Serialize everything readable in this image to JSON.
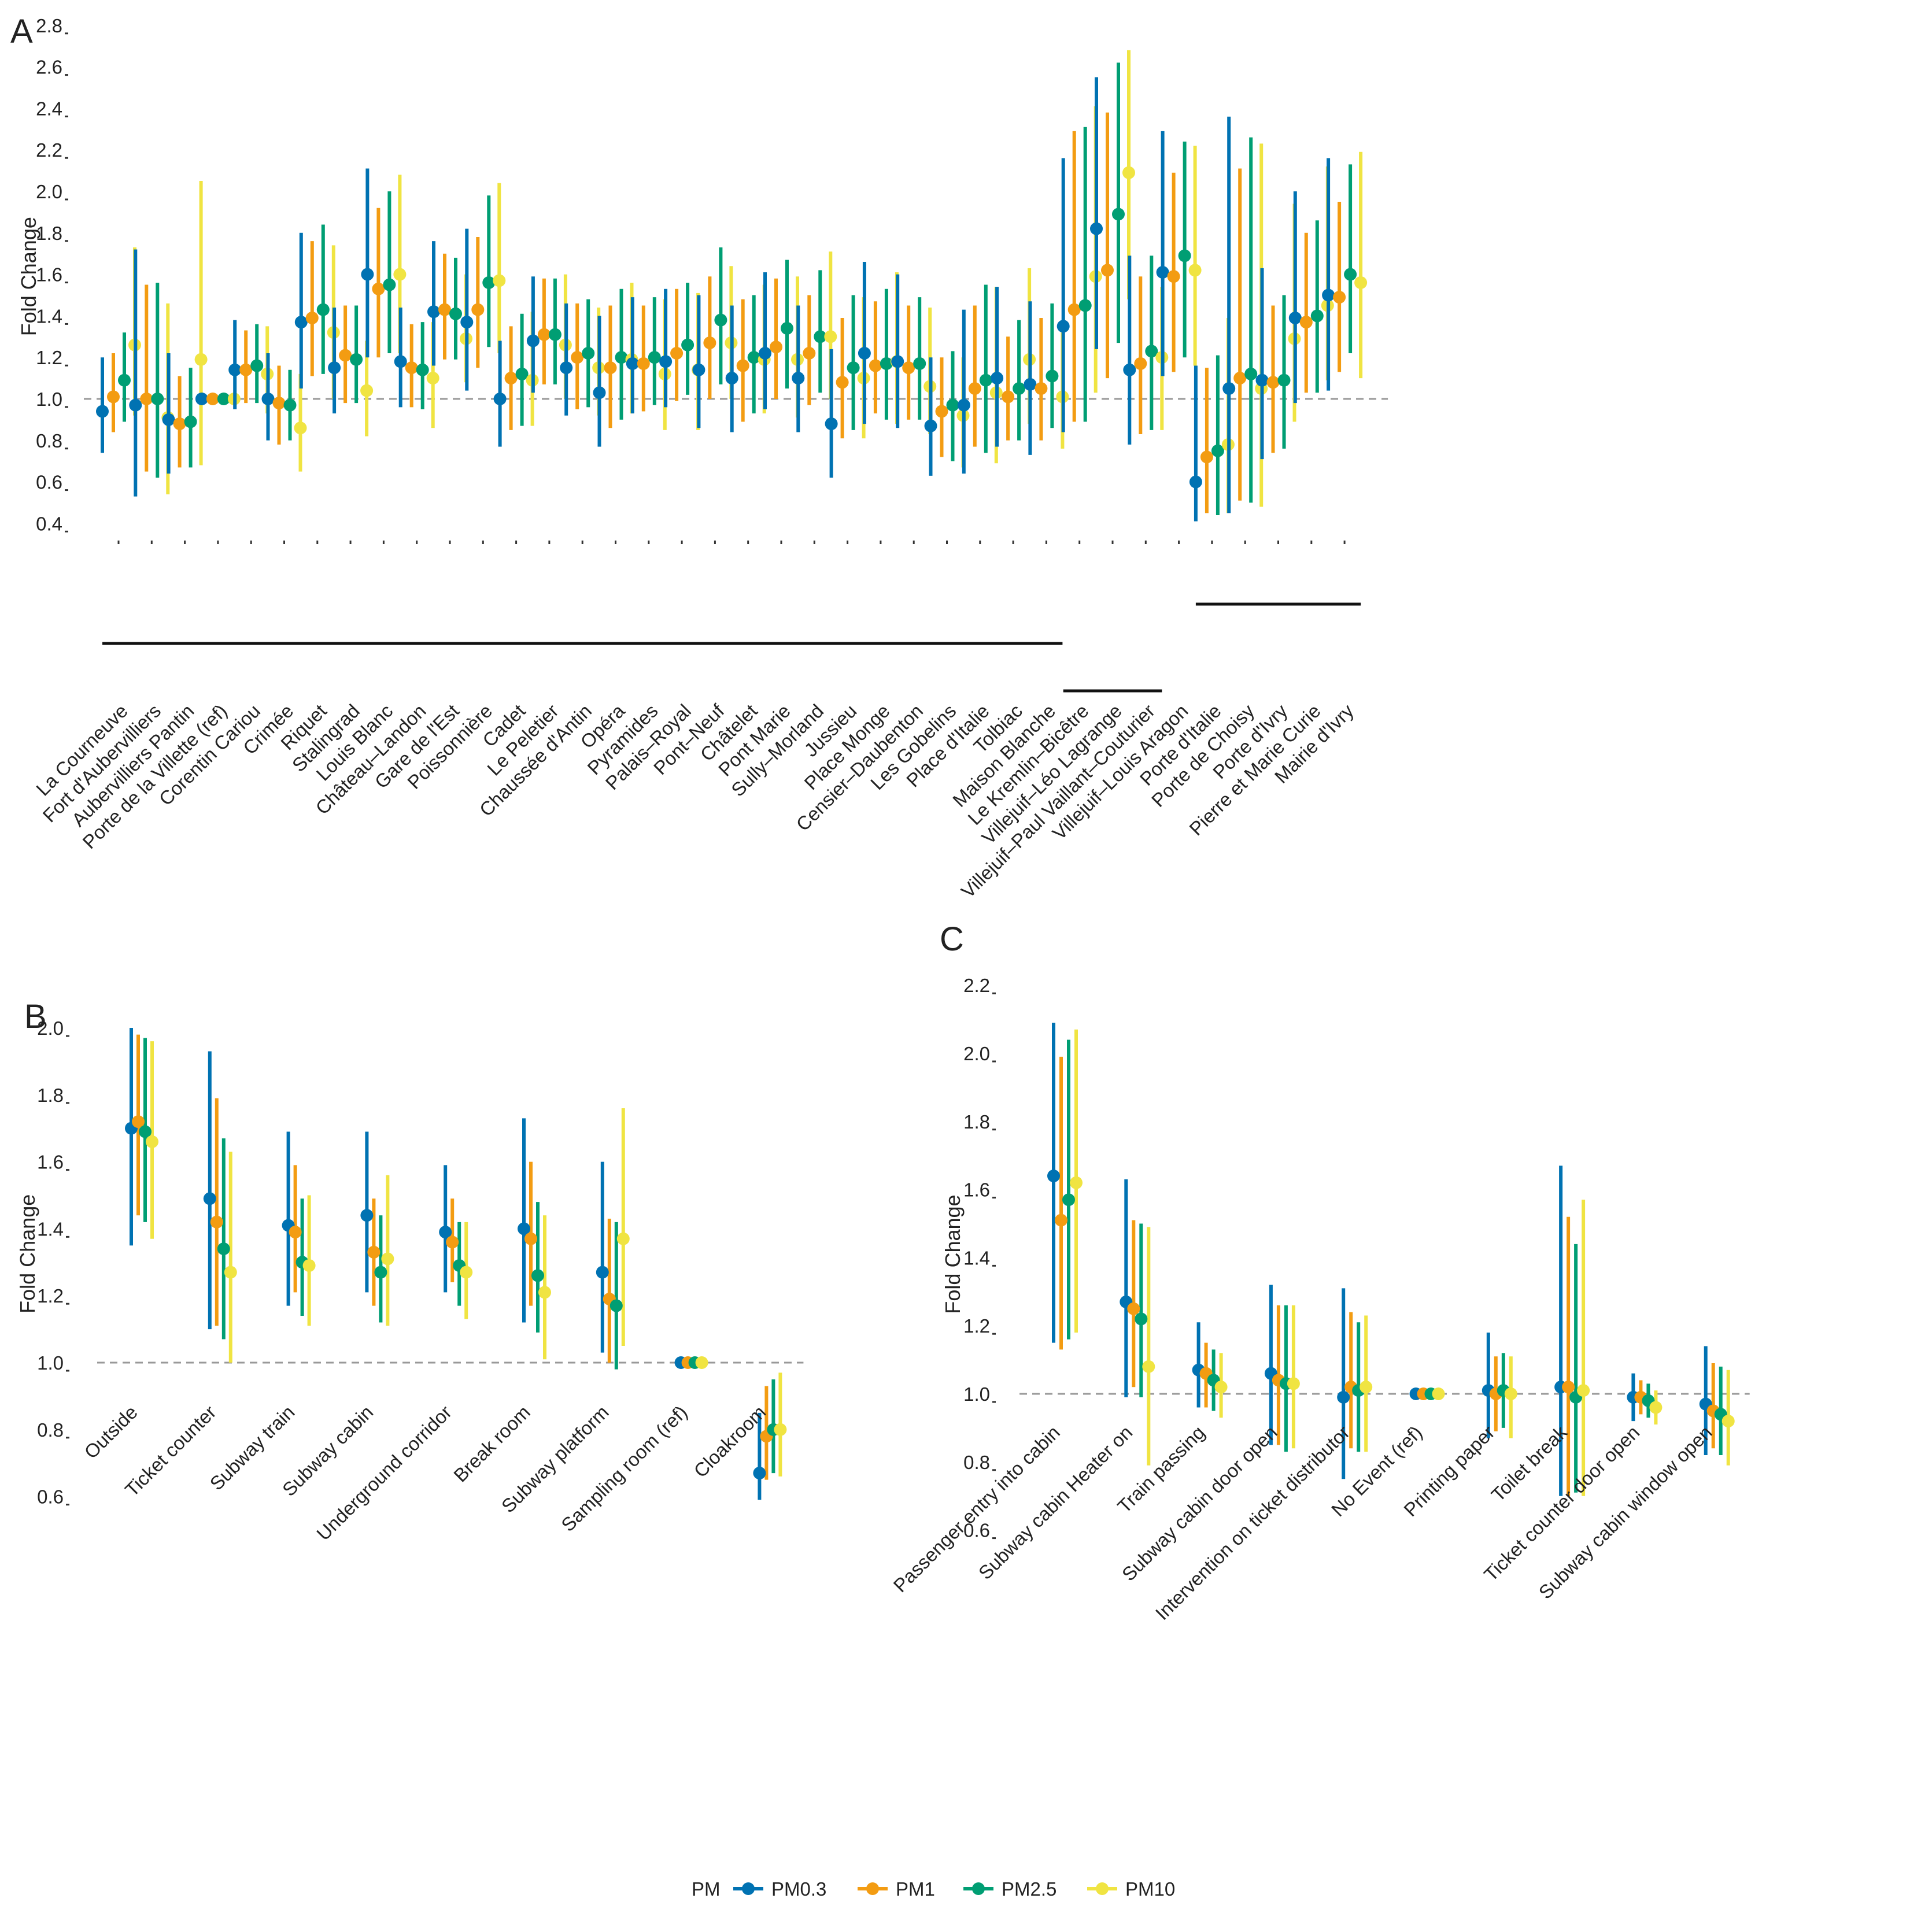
{
  "legend": {
    "title": "PM",
    "items": [
      "PM0.3",
      "PM1",
      "PM2.5",
      "PM10"
    ]
  },
  "colors": {
    "PM0.3": "#0072B2",
    "PM1": "#F39C12",
    "PM2.5": "#009E73",
    "PM10": "#F0E442"
  },
  "chart_data": [
    {
      "panel": "A",
      "type": "errorbar-dot",
      "ylabel": "Fold Change",
      "ylim": [
        0.33,
        2.85
      ],
      "yticks": [
        "0.4",
        "0.6",
        "0.8",
        "1.0",
        "1.2",
        "1.4",
        "1.6",
        "1.8",
        "2.0",
        "2.2",
        "2.4",
        "2.6",
        "2.8"
      ],
      "reference_line": 1.0,
      "series_order": [
        "PM0.3",
        "PM1",
        "PM2.5",
        "PM10"
      ],
      "groups": [
        {
          "from": 0,
          "to": 28
        },
        {
          "from": 29,
          "to": 31
        },
        {
          "from": 33,
          "to": 37
        }
      ],
      "categories": [
        "La Courneuve",
        "Fort d'Aubervilliers",
        "Aubervilliers Pantin",
        "Porte de la Villette (ref)",
        "Corentin Cariou",
        "Crimée",
        "Riquet",
        "Stalingrad",
        "Louis Blanc",
        "Château–Landon",
        "Gare de l'Est",
        "Poissonnière",
        "Cadet",
        "Le Peletier",
        "Chaussée d'Antin",
        "Opéra",
        "Pyramides",
        "Palais–Royal",
        "Pont–Neuf",
        "Châtelet",
        "Pont Marie",
        "Sully–Morland",
        "Jussieu",
        "Place Monge",
        "Censier–Daubenton",
        "Les Gobelins",
        "Place d'Italie",
        "Tolbiac",
        "Maison Blanche",
        "Le Kremlin–Bicêtre",
        "Villejuif–Léo Lagrange",
        "Villejuif–Paul Vaillant–Couturier",
        "Villejuif–Louis Aragon",
        "Porte d'Italie",
        "Porte de Choisy",
        "Porte d'Ivry",
        "Pierre et Marie Curie",
        "Mairie d'Ivry"
      ],
      "values": [
        [
          0.94,
          1.01,
          1.09,
          1.26
        ],
        [
          0.97,
          1.0,
          1.0,
          0.91
        ],
        [
          0.9,
          0.88,
          0.89,
          1.19
        ],
        [
          1.0,
          1.0,
          1.0,
          1.0
        ],
        [
          1.14,
          1.14,
          1.16,
          1.12
        ],
        [
          1.0,
          0.98,
          0.97,
          0.86
        ],
        [
          1.37,
          1.39,
          1.43,
          1.32
        ],
        [
          1.15,
          1.21,
          1.19,
          1.04
        ],
        [
          1.6,
          1.53,
          1.55,
          1.6
        ],
        [
          1.18,
          1.15,
          1.14,
          1.1
        ],
        [
          1.42,
          1.43,
          1.41,
          1.29
        ],
        [
          1.37,
          1.43,
          1.56,
          1.57
        ],
        [
          1.0,
          1.1,
          1.12,
          1.09
        ],
        [
          1.28,
          1.31,
          1.31,
          1.26
        ],
        [
          1.15,
          1.2,
          1.22,
          1.15
        ],
        [
          1.03,
          1.15,
          1.2,
          1.19
        ],
        [
          1.17,
          1.17,
          1.2,
          1.12
        ],
        [
          1.18,
          1.22,
          1.26,
          1.14
        ],
        [
          1.14,
          1.27,
          1.38,
          1.27
        ],
        [
          1.1,
          1.16,
          1.2,
          1.19
        ],
        [
          1.22,
          1.25,
          1.34,
          1.19
        ],
        [
          1.1,
          1.22,
          1.3,
          1.3
        ],
        [
          0.88,
          1.08,
          1.15,
          1.1
        ],
        [
          1.22,
          1.16,
          1.17,
          1.18
        ],
        [
          1.18,
          1.15,
          1.17,
          1.06
        ],
        [
          0.87,
          0.94,
          0.97,
          0.92
        ],
        [
          0.97,
          1.05,
          1.09,
          1.03
        ],
        [
          1.1,
          1.01,
          1.05,
          1.19
        ],
        [
          1.07,
          1.05,
          1.11,
          1.01
        ],
        [
          1.35,
          1.43,
          1.45,
          1.59
        ],
        [
          1.82,
          1.62,
          1.89,
          2.09
        ],
        [
          1.14,
          1.17,
          1.23,
          1.2
        ],
        [
          1.61,
          1.59,
          1.69,
          1.62
        ],
        [
          0.6,
          0.72,
          0.75,
          0.78
        ],
        [
          1.05,
          1.1,
          1.12,
          1.05
        ],
        [
          1.09,
          1.08,
          1.09,
          1.29
        ],
        [
          1.39,
          1.37,
          1.4,
          1.45
        ],
        [
          1.5,
          1.49,
          1.6,
          1.56
        ]
      ],
      "lower": [
        [
          0.74,
          0.84,
          0.89,
          0.92
        ],
        [
          0.53,
          0.65,
          0.62,
          0.54
        ],
        [
          0.64,
          0.67,
          0.67,
          0.68
        ],
        [
          1.0,
          1.0,
          1.0,
          1.0
        ],
        [
          0.95,
          0.98,
          0.98,
          0.93
        ],
        [
          0.8,
          0.78,
          0.8,
          0.65
        ],
        [
          1.05,
          1.11,
          1.12,
          1.0
        ],
        [
          0.93,
          0.98,
          0.98,
          0.82
        ],
        [
          1.2,
          1.2,
          1.22,
          1.22
        ],
        [
          0.96,
          0.96,
          0.95,
          0.86
        ],
        [
          1.16,
          1.19,
          1.19,
          1.08
        ],
        [
          1.04,
          1.15,
          1.25,
          1.22
        ],
        [
          0.77,
          0.85,
          0.87,
          0.87
        ],
        [
          1.03,
          1.07,
          1.07,
          1.0
        ],
        [
          0.92,
          0.95,
          0.96,
          0.92
        ],
        [
          0.77,
          0.86,
          0.9,
          0.93
        ],
        [
          0.93,
          0.94,
          0.97,
          0.85
        ],
        [
          0.96,
          0.99,
          1.02,
          0.85
        ],
        [
          0.86,
          1.0,
          1.07,
          1.0
        ],
        [
          0.84,
          0.89,
          0.93,
          0.93
        ],
        [
          0.95,
          1.0,
          1.05,
          0.91
        ],
        [
          0.84,
          0.97,
          1.03,
          1.0
        ],
        [
          0.62,
          0.81,
          0.85,
          0.81
        ],
        [
          0.88,
          0.93,
          0.9,
          0.88
        ],
        [
          0.86,
          0.9,
          0.9,
          0.83
        ],
        [
          0.63,
          0.72,
          0.7,
          0.67
        ],
        [
          0.64,
          0.77,
          0.74,
          0.69
        ],
        [
          0.77,
          0.8,
          0.8,
          0.88
        ],
        [
          0.73,
          0.8,
          0.86,
          0.76
        ],
        [
          0.84,
          0.89,
          0.89,
          1.03
        ],
        [
          1.24,
          1.1,
          1.27,
          1.48
        ],
        [
          0.78,
          0.83,
          0.85,
          0.85
        ],
        [
          1.11,
          1.13,
          1.2,
          1.16
        ],
        [
          0.41,
          0.45,
          0.44,
          0.45
        ],
        [
          0.45,
          0.51,
          0.5,
          0.48
        ],
        [
          0.71,
          0.74,
          0.76,
          0.89
        ],
        [
          0.98,
          1.03,
          1.03,
          1.09
        ],
        [
          1.04,
          1.13,
          1.22,
          1.1
        ]
      ],
      "upper": [
        [
          1.2,
          1.22,
          1.32,
          1.73
        ],
        [
          1.72,
          1.55,
          1.56,
          1.46
        ],
        [
          1.22,
          1.11,
          1.15,
          2.05
        ],
        [
          1.0,
          1.0,
          1.0,
          1.0
        ],
        [
          1.38,
          1.33,
          1.36,
          1.35
        ],
        [
          1.22,
          1.16,
          1.14,
          1.12
        ],
        [
          1.8,
          1.76,
          1.84,
          1.74
        ],
        [
          1.44,
          1.45,
          1.45,
          1.28
        ],
        [
          2.11,
          1.92,
          2.0,
          2.08
        ],
        [
          1.44,
          1.36,
          1.37,
          1.37
        ],
        [
          1.76,
          1.7,
          1.68,
          1.6
        ],
        [
          1.82,
          1.78,
          1.98,
          2.04
        ],
        [
          1.28,
          1.35,
          1.41,
          1.42
        ],
        [
          1.59,
          1.58,
          1.58,
          1.6
        ],
        [
          1.46,
          1.46,
          1.48,
          1.44
        ],
        [
          1.4,
          1.45,
          1.53,
          1.56
        ],
        [
          1.49,
          1.45,
          1.49,
          1.48
        ],
        [
          1.53,
          1.53,
          1.56,
          1.51
        ],
        [
          1.5,
          1.59,
          1.73,
          1.64
        ],
        [
          1.45,
          1.48,
          1.5,
          1.55
        ],
        [
          1.61,
          1.58,
          1.67,
          1.59
        ],
        [
          1.45,
          1.5,
          1.62,
          1.71
        ],
        [
          1.24,
          1.39,
          1.5,
          1.49
        ],
        [
          1.66,
          1.47,
          1.53,
          1.61
        ],
        [
          1.6,
          1.45,
          1.49,
          1.44
        ],
        [
          1.2,
          1.2,
          1.23,
          1.2
        ],
        [
          1.43,
          1.45,
          1.55,
          1.54
        ],
        [
          1.54,
          1.3,
          1.38,
          1.63
        ],
        [
          1.47,
          1.39,
          1.46,
          1.32
        ],
        [
          2.16,
          2.29,
          2.31,
          2.41
        ],
        [
          2.55,
          2.38,
          2.62,
          2.68
        ],
        [
          1.69,
          1.59,
          1.69,
          1.54
        ],
        [
          2.29,
          2.09,
          2.24,
          2.22
        ],
        [
          1.16,
          1.15,
          1.21,
          1.39
        ],
        [
          2.36,
          2.11,
          2.26,
          2.23
        ],
        [
          1.63,
          1.45,
          1.5,
          1.94
        ],
        [
          2.0,
          1.8,
          1.86,
          2.12
        ],
        [
          2.16,
          1.95,
          2.13,
          2.19
        ]
      ]
    },
    {
      "panel": "B",
      "type": "errorbar-dot",
      "ylabel": "Fold Change",
      "ylim": [
        0.55,
        2.1
      ],
      "yticks": [
        "0.6",
        "0.8",
        "1.0",
        "1.2",
        "1.4",
        "1.6",
        "1.8",
        "2.0"
      ],
      "reference_line": 1.0,
      "series_order": [
        "PM0.3",
        "PM1",
        "PM2.5",
        "PM10"
      ],
      "categories": [
        "Outside",
        "Ticket counter",
        "Subway train",
        "Subway cabin",
        "Underground corridor",
        "Break room",
        "Subway platform",
        "Sampling room (ref)",
        "Cloakroom"
      ],
      "values": [
        [
          1.7,
          1.72,
          1.69,
          1.66
        ],
        [
          1.49,
          1.42,
          1.34,
          1.27
        ],
        [
          1.41,
          1.39,
          1.3,
          1.29
        ],
        [
          1.44,
          1.33,
          1.27,
          1.31
        ],
        [
          1.39,
          1.36,
          1.29,
          1.27
        ],
        [
          1.4,
          1.37,
          1.26,
          1.21
        ],
        [
          1.27,
          1.19,
          1.17,
          1.37
        ],
        [
          1.0,
          1.0,
          1.0,
          1.0
        ],
        [
          0.67,
          0.78,
          0.8,
          0.8
        ]
      ],
      "lower": [
        [
          1.35,
          1.44,
          1.42,
          1.37
        ],
        [
          1.1,
          1.11,
          1.07,
          1.0
        ],
        [
          1.17,
          1.21,
          1.14,
          1.11
        ],
        [
          1.21,
          1.17,
          1.12,
          1.11
        ],
        [
          1.21,
          1.24,
          1.17,
          1.13
        ],
        [
          1.12,
          1.17,
          1.09,
          1.01
        ],
        [
          1.03,
          1.0,
          0.98,
          1.05
        ],
        [
          1.0,
          1.0,
          1.0,
          1.0
        ],
        [
          0.59,
          0.65,
          0.67,
          0.66
        ]
      ],
      "upper": [
        [
          2.0,
          1.98,
          1.97,
          1.96
        ],
        [
          1.93,
          1.79,
          1.67,
          1.63
        ],
        [
          1.69,
          1.59,
          1.49,
          1.5
        ],
        [
          1.69,
          1.49,
          1.44,
          1.56
        ],
        [
          1.59,
          1.49,
          1.42,
          1.42
        ],
        [
          1.73,
          1.6,
          1.48,
          1.44
        ],
        [
          1.6,
          1.43,
          1.42,
          1.76
        ],
        [
          1.0,
          1.0,
          1.0,
          1.0
        ],
        [
          0.85,
          0.93,
          0.95,
          0.97
        ]
      ]
    },
    {
      "panel": "C",
      "type": "errorbar-dot",
      "ylabel": "Fold Change",
      "ylim": [
        0.57,
        2.25
      ],
      "yticks": [
        "0.6",
        "0.8",
        "1.0",
        "1.2",
        "1.4",
        "1.6",
        "1.8",
        "2.0",
        "2.2"
      ],
      "reference_line": 1.0,
      "series_order": [
        "PM0.3",
        "PM1",
        "PM2.5",
        "PM10"
      ],
      "categories": [
        "Passenger entry into cabin",
        "Subway cabin Heater on",
        "Train passing",
        "Subway cabin door open",
        "Intervention on ticket distributor",
        "No Event (ref)",
        "Printing paper",
        "Toilet break",
        "Ticket counter door open",
        "Subway cabin window open"
      ],
      "values": [
        [
          1.64,
          1.51,
          1.57,
          1.62
        ],
        [
          1.27,
          1.25,
          1.22,
          1.08
        ],
        [
          1.07,
          1.06,
          1.04,
          1.02
        ],
        [
          1.06,
          1.04,
          1.03,
          1.03
        ],
        [
          0.99,
          1.02,
          1.01,
          1.02
        ],
        [
          1.0,
          1.0,
          1.0,
          1.0
        ],
        [
          1.01,
          1.0,
          1.01,
          1.0
        ],
        [
          1.02,
          1.02,
          0.99,
          1.01
        ],
        [
          0.99,
          0.99,
          0.98,
          0.96
        ],
        [
          0.97,
          0.95,
          0.94,
          0.92
        ]
      ],
      "lower": [
        [
          1.15,
          1.13,
          1.16,
          1.18
        ],
        [
          0.99,
          1.02,
          0.99,
          0.79
        ],
        [
          0.96,
          0.96,
          0.95,
          0.93
        ],
        [
          0.85,
          0.85,
          0.83,
          0.84
        ],
        [
          0.75,
          0.84,
          0.83,
          0.83
        ],
        [
          1.0,
          1.0,
          1.0,
          1.0
        ],
        [
          0.87,
          0.89,
          0.9,
          0.87
        ],
        [
          0.7,
          0.7,
          0.71,
          0.7
        ],
        [
          0.92,
          0.94,
          0.93,
          0.91
        ],
        [
          0.82,
          0.84,
          0.82,
          0.79
        ]
      ],
      "upper": [
        [
          2.09,
          1.99,
          2.04,
          2.07
        ],
        [
          1.63,
          1.51,
          1.5,
          1.49
        ],
        [
          1.21,
          1.15,
          1.13,
          1.12
        ],
        [
          1.32,
          1.26,
          1.26,
          1.26
        ],
        [
          1.31,
          1.24,
          1.21,
          1.23
        ],
        [
          1.0,
          1.0,
          1.0,
          1.0
        ],
        [
          1.18,
          1.11,
          1.12,
          1.11
        ],
        [
          1.67,
          1.52,
          1.44,
          1.57
        ],
        [
          1.06,
          1.04,
          1.03,
          1.01
        ],
        [
          1.14,
          1.09,
          1.08,
          1.07
        ]
      ]
    }
  ]
}
